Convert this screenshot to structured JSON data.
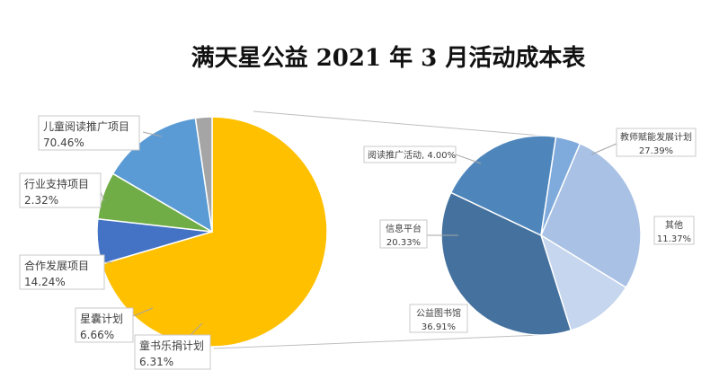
{
  "chart_data": [
    {
      "type": "pie",
      "title": "满天星公益 2021 年 3 月活动成本表",
      "slices": [
        {
          "label": "儿童阅读推广项目",
          "value": 70.46,
          "display": "70.46%",
          "color": "#FFC000"
        },
        {
          "label": "童书乐捐计划",
          "value": 6.31,
          "display": "6.31%",
          "color": "#4472C4"
        },
        {
          "label": "星囊计划",
          "value": 6.66,
          "display": "6.66%",
          "color": "#70AD47"
        },
        {
          "label": "合作发展项目",
          "value": 14.24,
          "display": "14.24%",
          "color": "#5B9BD5"
        },
        {
          "label": "行业支持项目",
          "value": 2.32,
          "display": "2.32%",
          "color": "#A5A5A5"
        }
      ]
    },
    {
      "type": "pie",
      "slices": [
        {
          "label": "教师赋能发展计划",
          "value": 27.39,
          "display": "27.39%",
          "color": "#A9C1E4"
        },
        {
          "label": "其他",
          "value": 11.37,
          "display": "11.37%",
          "color": "#C5D6EE"
        },
        {
          "label": "公益图书馆",
          "value": 36.91,
          "display": "36.91%",
          "color": "#44719E"
        },
        {
          "label": "信息平台",
          "value": 20.33,
          "display": "20.33%",
          "color": "#4E86BC"
        },
        {
          "label": "阅读推广活动",
          "value": 4.0,
          "display": "4.00%",
          "color": "#7FAADC"
        }
      ]
    }
  ]
}
